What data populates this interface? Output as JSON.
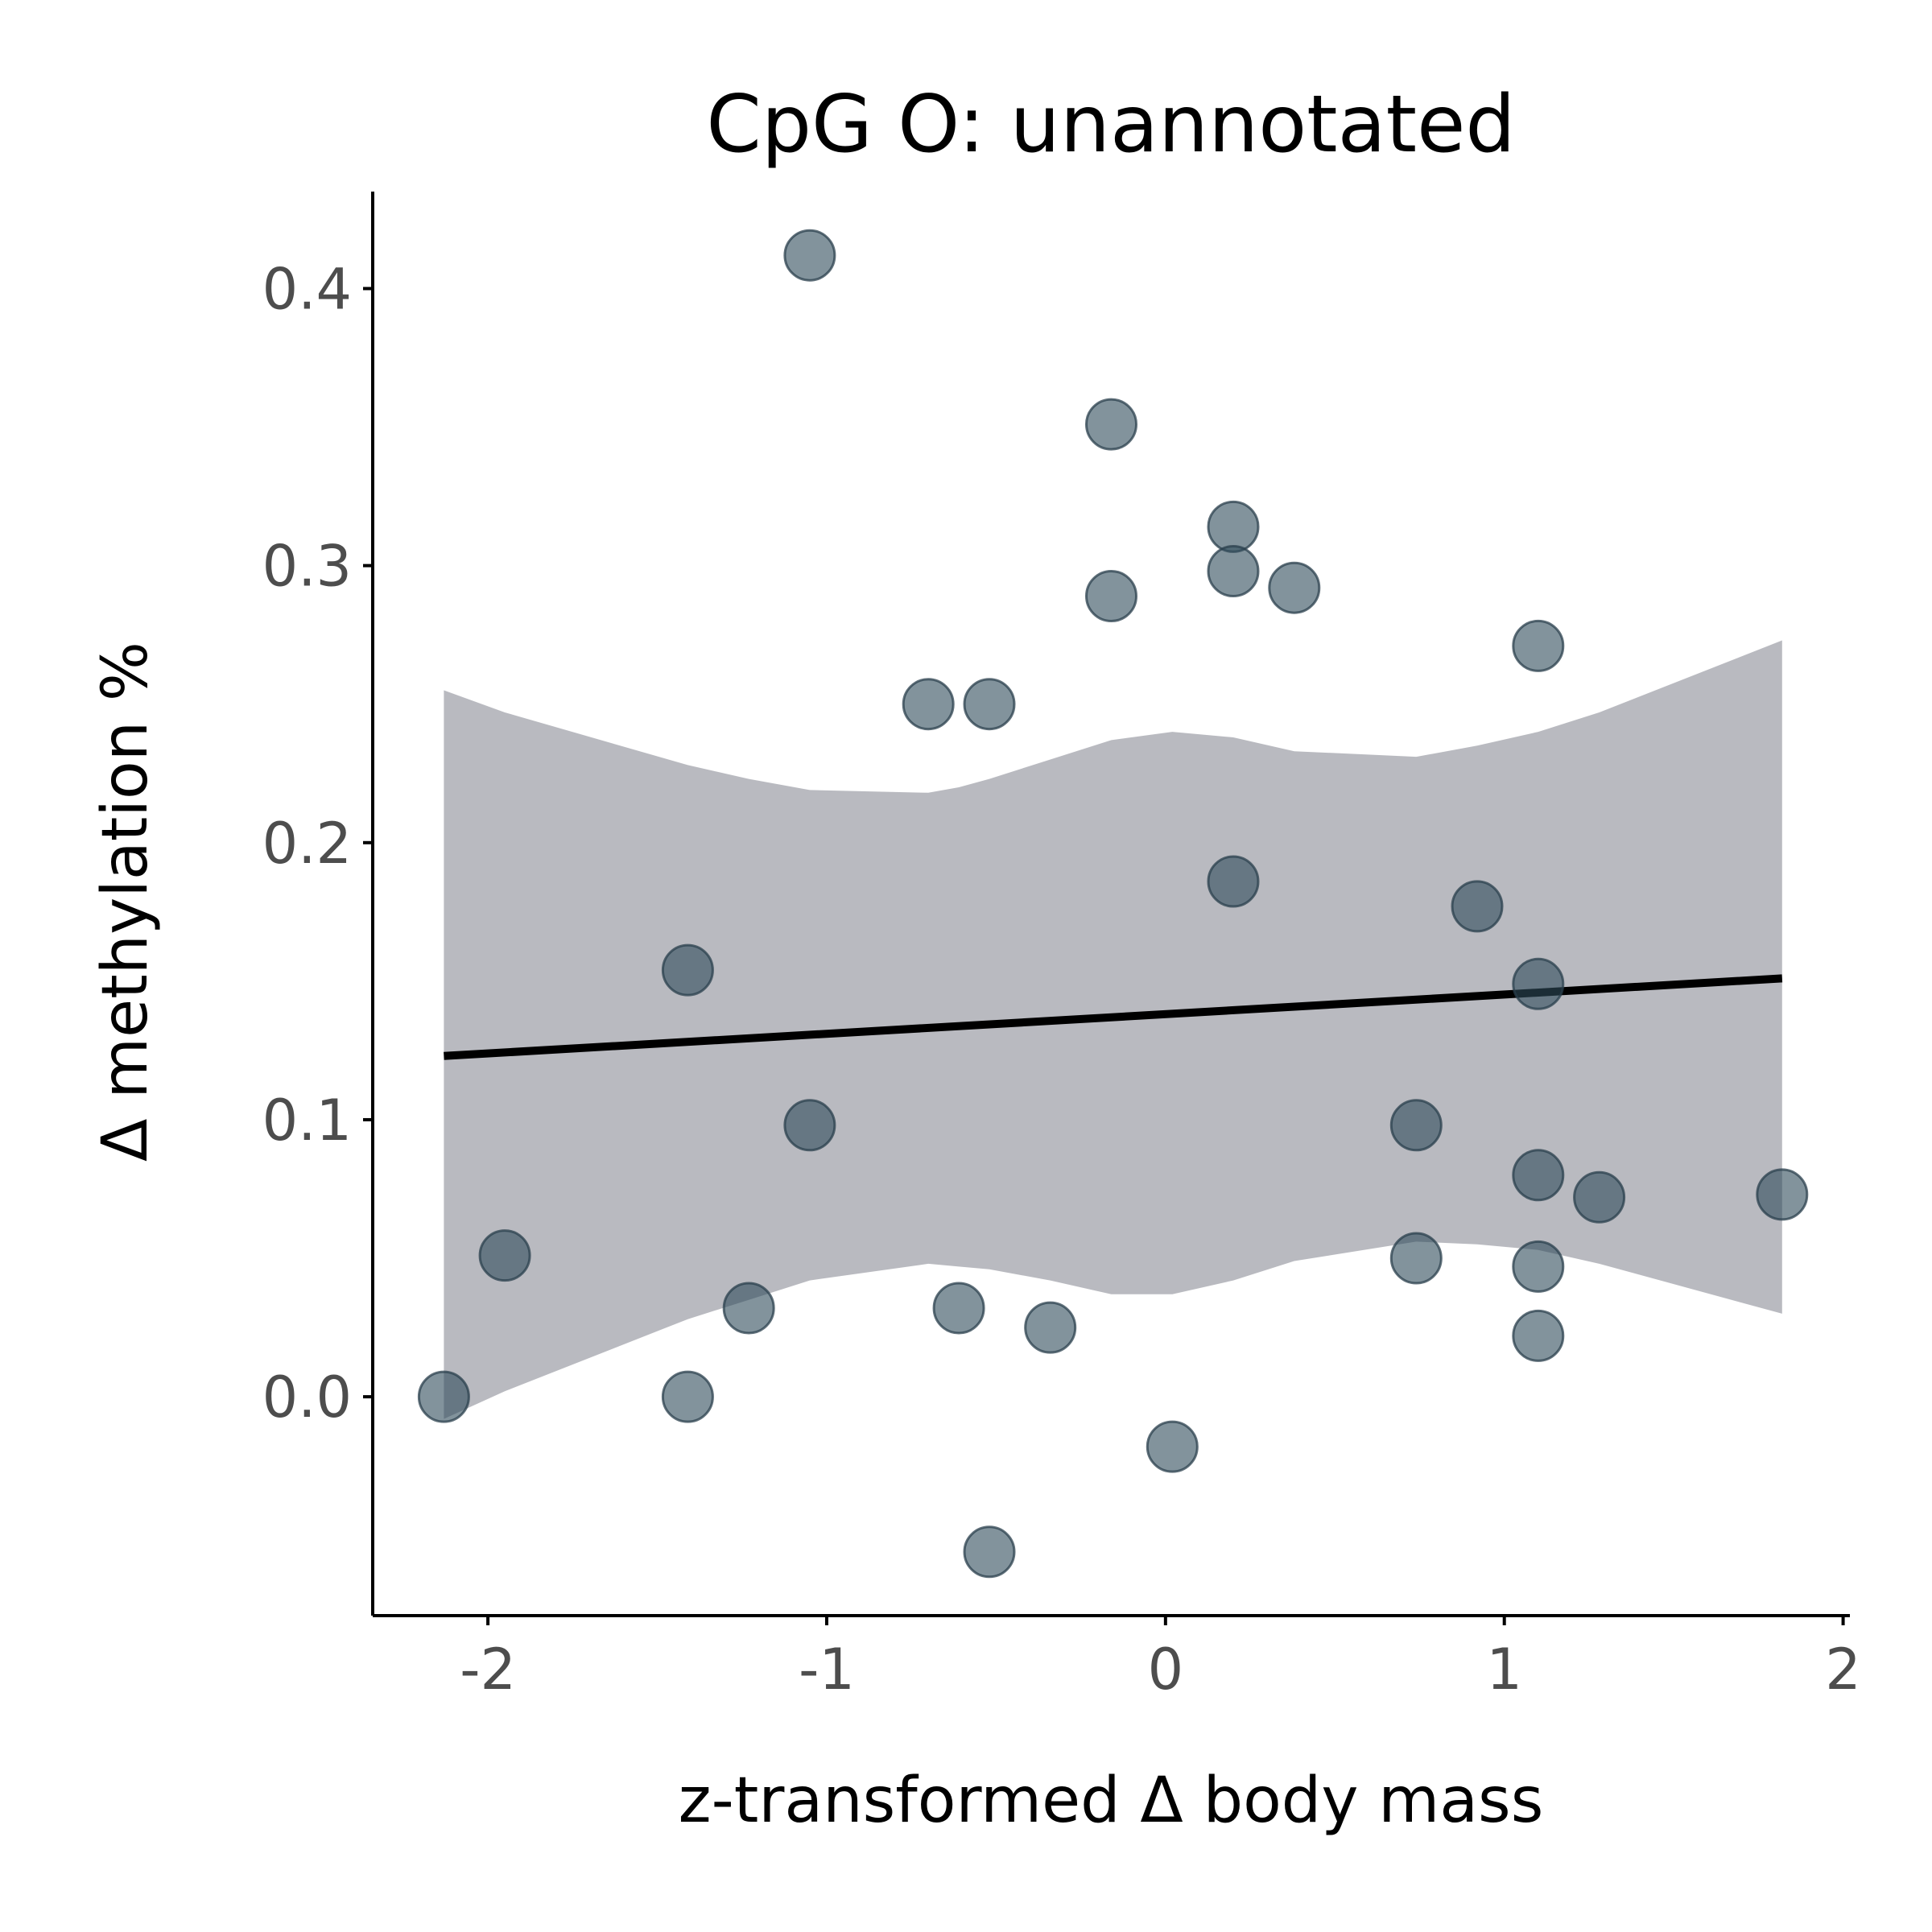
{
  "chart_data": {
    "type": "scatter",
    "title": "CpG O: unannotated",
    "xlabel": "z-transformed Δ body mass",
    "ylabel": "Δ methylation %",
    "xlim": [
      -2.34,
      2.02
    ],
    "ylim": [
      -0.079,
      0.435
    ],
    "x_ticks": [
      -2,
      -1,
      0,
      1,
      2
    ],
    "x_tick_labels": [
      "-2",
      "-1",
      "0",
      "1",
      "2"
    ],
    "y_ticks": [
      0.0,
      0.1,
      0.2,
      0.3,
      0.4
    ],
    "y_tick_labels": [
      "0.0",
      "0.1",
      "0.2",
      "0.3",
      "0.4"
    ],
    "grid": false,
    "legend": "none",
    "points": [
      {
        "x": -1.05,
        "y": 0.412
      },
      {
        "x": -0.16,
        "y": 0.351
      },
      {
        "x": 0.2,
        "y": 0.314
      },
      {
        "x": 0.2,
        "y": 0.298
      },
      {
        "x": 0.38,
        "y": 0.292
      },
      {
        "x": -0.16,
        "y": 0.289
      },
      {
        "x": 1.1,
        "y": 0.271
      },
      {
        "x": -0.7,
        "y": 0.25
      },
      {
        "x": -0.52,
        "y": 0.25
      },
      {
        "x": 0.2,
        "y": 0.186
      },
      {
        "x": 0.92,
        "y": 0.177
      },
      {
        "x": -1.41,
        "y": 0.154
      },
      {
        "x": 1.1,
        "y": 0.149
      },
      {
        "x": -1.05,
        "y": 0.098
      },
      {
        "x": 0.74,
        "y": 0.098
      },
      {
        "x": 1.1,
        "y": 0.08
      },
      {
        "x": 1.28,
        "y": 0.072
      },
      {
        "x": 1.82,
        "y": 0.073
      },
      {
        "x": -1.95,
        "y": 0.051
      },
      {
        "x": 0.74,
        "y": 0.05
      },
      {
        "x": 1.1,
        "y": 0.047
      },
      {
        "x": -1.23,
        "y": 0.032
      },
      {
        "x": -0.61,
        "y": 0.032
      },
      {
        "x": -0.34,
        "y": 0.025
      },
      {
        "x": 1.1,
        "y": 0.022
      },
      {
        "x": -2.13,
        "y": 0.0
      },
      {
        "x": -1.41,
        "y": 0.0
      },
      {
        "x": 0.02,
        "y": -0.018
      },
      {
        "x": -0.52,
        "y": -0.056
      }
    ],
    "fit_line": {
      "x": [
        -2.13,
        1.82
      ],
      "y": [
        0.123,
        0.151
      ]
    },
    "ci_band": {
      "x": [
        -2.13,
        -1.95,
        -1.41,
        -1.23,
        -1.05,
        -0.7,
        -0.61,
        -0.52,
        -0.34,
        -0.16,
        0.02,
        0.2,
        0.38,
        0.74,
        0.92,
        1.1,
        1.28,
        1.82
      ],
      "upper": [
        0.255,
        0.247,
        0.228,
        0.223,
        0.219,
        0.218,
        0.22,
        0.223,
        0.23,
        0.237,
        0.24,
        0.238,
        0.233,
        0.231,
        0.235,
        0.24,
        0.247,
        0.273
      ],
      "lower": [
        -0.008,
        0.002,
        0.028,
        0.035,
        0.042,
        0.048,
        0.047,
        0.046,
        0.042,
        0.037,
        0.037,
        0.042,
        0.049,
        0.056,
        0.055,
        0.053,
        0.048,
        0.03
      ]
    }
  }
}
